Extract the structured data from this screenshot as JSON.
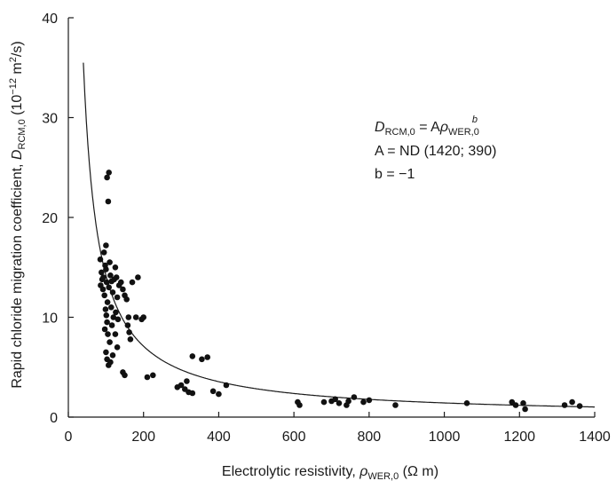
{
  "chart_data": {
    "type": "scatter",
    "xlabel_main": "Electrolytic resistivity, ",
    "xlabel_symbol": "ρ",
    "xlabel_sub": "WER,0",
    "xlabel_unit": " (Ω m)",
    "ylabel_main": "Rapid chloride migration coefficient, ",
    "ylabel_symbol": "D",
    "ylabel_sub": "RCM,0",
    "ylabel_unit_pre": " (10",
    "ylabel_unit_exp": "−12",
    "ylabel_unit_mid": " m",
    "ylabel_unit_exp2": "2",
    "ylabel_unit_post": "/s)",
    "xlim": [
      0,
      1400
    ],
    "ylim": [
      0,
      40
    ],
    "xticks": [
      0,
      200,
      400,
      600,
      800,
      1000,
      1200,
      1400
    ],
    "yticks": [
      0,
      10,
      20,
      30,
      40
    ],
    "grid": false,
    "annotation": {
      "line1_lhs": "D",
      "line1_lhs_sub": "RCM,0",
      "line1_eq": " = A",
      "line1_rho": "ρ",
      "line1_rho_sub": "WER,0",
      "line1_exp": "b",
      "line2": "A = ND (1420; 390)",
      "line3": "b = −1"
    },
    "fit": {
      "form": "D = A·ρ^b",
      "A": 1420,
      "b": -1,
      "x_range": [
        40,
        1400
      ]
    },
    "series": [
      {
        "points": [
          [
            85,
            15.8
          ],
          [
            88,
            14.5
          ],
          [
            90,
            13.8
          ],
          [
            86,
            13.2
          ],
          [
            92,
            12.8
          ],
          [
            95,
            16.5
          ],
          [
            98,
            15.2
          ],
          [
            100,
            14.8
          ],
          [
            102,
            13.5
          ],
          [
            96,
            12.2
          ],
          [
            104,
            11.5
          ],
          [
            99,
            10.8
          ],
          [
            101,
            10.2
          ],
          [
            103,
            9.5
          ],
          [
            97,
            8.8
          ],
          [
            105,
            8.3
          ],
          [
            93,
            14.0
          ],
          [
            108,
            13.0
          ],
          [
            110,
            15.5
          ],
          [
            112,
            14.2
          ],
          [
            115,
            13.6
          ],
          [
            118,
            12.5
          ],
          [
            114,
            11.0
          ],
          [
            120,
            10.0
          ],
          [
            116,
            9.2
          ],
          [
            122,
            13.8
          ],
          [
            125,
            15.0
          ],
          [
            128,
            14.0
          ],
          [
            130,
            12.0
          ],
          [
            126,
            10.5
          ],
          [
            132,
            9.8
          ],
          [
            135,
            13.2
          ],
          [
            140,
            13.5
          ],
          [
            145,
            12.8
          ],
          [
            150,
            12.2
          ],
          [
            155,
            11.8
          ],
          [
            160,
            10.0
          ],
          [
            158,
            9.2
          ],
          [
            162,
            8.5
          ],
          [
            165,
            7.8
          ],
          [
            100,
            17.2
          ],
          [
            103,
            24.0
          ],
          [
            108,
            24.5
          ],
          [
            106,
            21.6
          ],
          [
            100,
            6.5
          ],
          [
            103,
            5.8
          ],
          [
            107,
            5.2
          ],
          [
            112,
            5.5
          ],
          [
            118,
            6.2
          ],
          [
            110,
            7.5
          ],
          [
            125,
            8.3
          ],
          [
            130,
            7.0
          ],
          [
            145,
            4.5
          ],
          [
            150,
            4.2
          ],
          [
            170,
            13.5
          ],
          [
            180,
            10.0
          ],
          [
            185,
            14.0
          ],
          [
            195,
            9.8
          ],
          [
            200,
            10.0
          ],
          [
            210,
            4.0
          ],
          [
            225,
            4.2
          ],
          [
            290,
            3.0
          ],
          [
            300,
            3.2
          ],
          [
            310,
            2.8
          ],
          [
            315,
            3.6
          ],
          [
            320,
            2.5
          ],
          [
            330,
            2.4
          ],
          [
            330,
            6.1
          ],
          [
            355,
            5.8
          ],
          [
            370,
            6.0
          ],
          [
            385,
            2.6
          ],
          [
            400,
            2.3
          ],
          [
            420,
            3.2
          ],
          [
            610,
            1.5
          ],
          [
            615,
            1.2
          ],
          [
            680,
            1.5
          ],
          [
            700,
            1.6
          ],
          [
            710,
            1.8
          ],
          [
            720,
            1.4
          ],
          [
            740,
            1.2
          ],
          [
            745,
            1.6
          ],
          [
            760,
            2.0
          ],
          [
            785,
            1.5
          ],
          [
            800,
            1.7
          ],
          [
            870,
            1.2
          ],
          [
            1060,
            1.4
          ],
          [
            1180,
            1.5
          ],
          [
            1190,
            1.2
          ],
          [
            1210,
            1.4
          ],
          [
            1215,
            0.8
          ],
          [
            1320,
            1.2
          ],
          [
            1340,
            1.5
          ],
          [
            1360,
            1.1
          ]
        ]
      }
    ]
  }
}
